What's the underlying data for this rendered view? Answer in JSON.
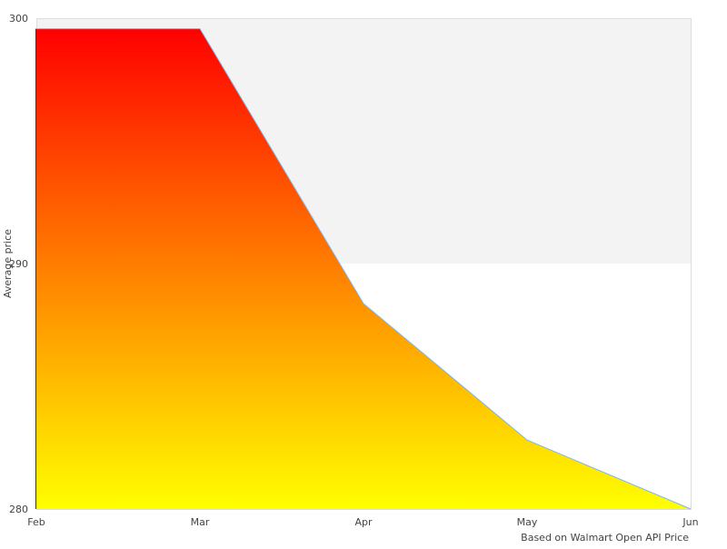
{
  "chart_data": {
    "type": "area",
    "title": "",
    "xlabel": "",
    "ylabel": "Average price",
    "credit": "Based on Walmart Open API Price",
    "categories": [
      "Feb",
      "Mar",
      "Apr",
      "May",
      "Jun"
    ],
    "series": [
      {
        "values": [
          299.57,
          299.57,
          288.37,
          282.81,
          280.0
        ]
      }
    ],
    "ylim": [
      280,
      300
    ],
    "yticks": [
      "280",
      "290",
      "300"
    ],
    "grid": false,
    "plot_band": {
      "from": 290,
      "to": 300,
      "color": "#f3f3f3"
    },
    "colors": {
      "gradient_top": "#ff0000",
      "gradient_bottom": "#ffff00",
      "line": "#7cb5ec"
    }
  }
}
